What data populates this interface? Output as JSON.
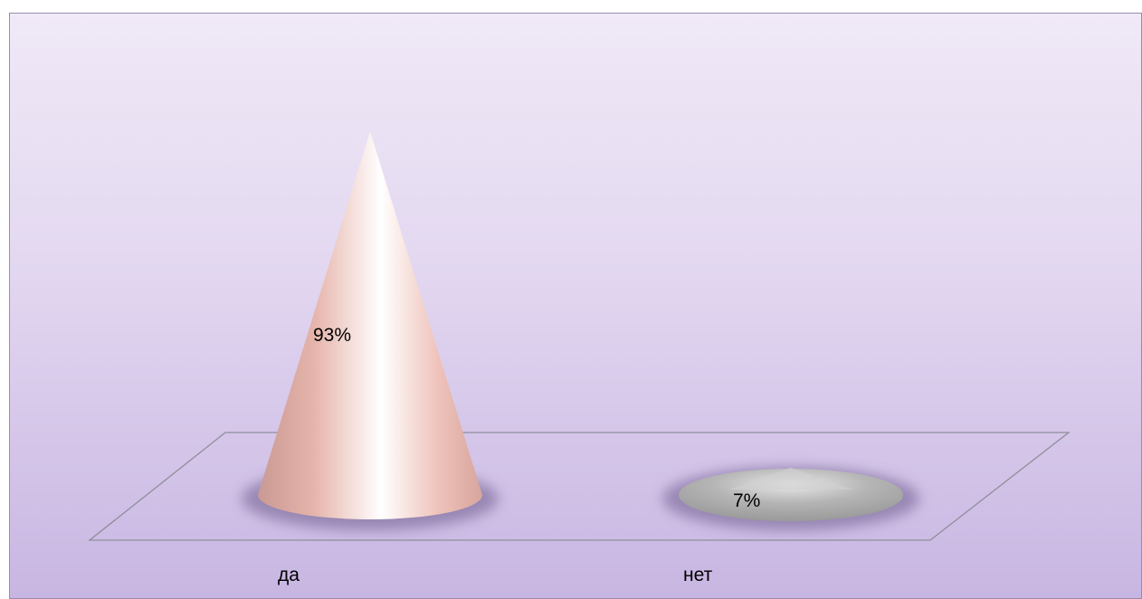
{
  "chart_data": {
    "type": "bar",
    "subtype": "3d-cone",
    "categories": [
      "да",
      "нет"
    ],
    "values": [
      93,
      7
    ],
    "data_labels": [
      "93%",
      "7%"
    ],
    "unit": "%",
    "ylim": [
      0,
      100
    ],
    "colors": {
      "cone_1": "#f3c9c0",
      "cone_2": "#a9a9a9",
      "background_top": "#f0e9f7",
      "background_bottom": "#c8b6e2",
      "floor_line": "#8e8e9a"
    },
    "grid": false,
    "legend": "none",
    "axes_visible": false
  }
}
